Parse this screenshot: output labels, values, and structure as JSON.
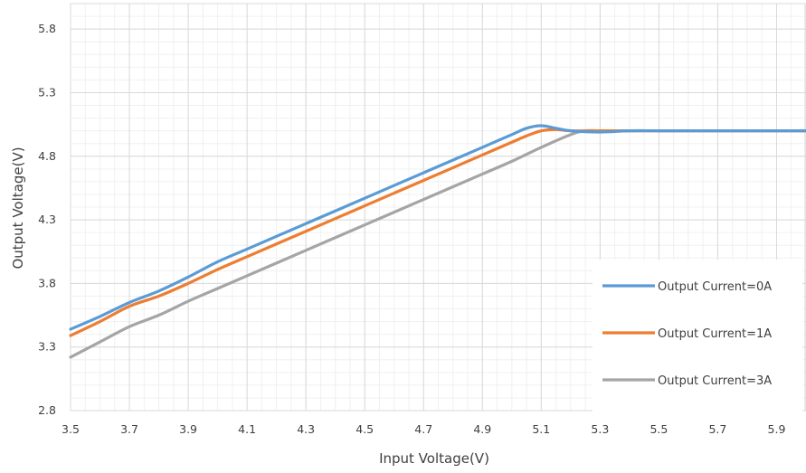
{
  "chart_data": {
    "type": "line",
    "title": "",
    "xlabel": "Input Voltage(V)",
    "ylabel": "Output Voltage(V)",
    "xlim": [
      3.5,
      6.0
    ],
    "ylim": [
      2.8,
      6.0
    ],
    "x_ticks": [
      "3.5",
      "3.7",
      "3.9",
      "4.1",
      "4.3",
      "4.5",
      "4.7",
      "4.9",
      "5.1",
      "5.3",
      "5.5",
      "5.7",
      "5.9"
    ],
    "y_ticks": [
      "2.8",
      "3.3",
      "3.8",
      "4.3",
      "4.8",
      "5.3",
      "5.8"
    ],
    "grid": true,
    "legend_position": "bottom-right",
    "series": [
      {
        "name": "Output Current=0A",
        "color": "#5b9bd5",
        "points": [
          [
            3.5,
            3.44
          ],
          [
            3.6,
            3.54
          ],
          [
            3.7,
            3.65
          ],
          [
            3.8,
            3.74
          ],
          [
            3.9,
            3.85
          ],
          [
            4.0,
            3.97
          ],
          [
            4.1,
            4.07
          ],
          [
            4.2,
            4.17
          ],
          [
            4.3,
            4.27
          ],
          [
            4.4,
            4.37
          ],
          [
            4.5,
            4.47
          ],
          [
            4.6,
            4.57
          ],
          [
            4.7,
            4.67
          ],
          [
            4.8,
            4.77
          ],
          [
            4.9,
            4.87
          ],
          [
            5.0,
            4.97
          ],
          [
            5.05,
            5.02
          ],
          [
            5.1,
            5.04
          ],
          [
            5.15,
            5.02
          ],
          [
            5.2,
            5.0
          ],
          [
            5.3,
            4.99
          ],
          [
            5.4,
            5.0
          ],
          [
            5.5,
            5.0
          ],
          [
            5.6,
            5.0
          ],
          [
            5.7,
            5.0
          ],
          [
            5.8,
            5.0
          ],
          [
            5.9,
            5.0
          ],
          [
            6.0,
            5.0
          ]
        ]
      },
      {
        "name": "Output Current=1A",
        "color": "#ed7d31",
        "points": [
          [
            3.5,
            3.39
          ],
          [
            3.6,
            3.5
          ],
          [
            3.7,
            3.62
          ],
          [
            3.8,
            3.7
          ],
          [
            3.9,
            3.8
          ],
          [
            4.0,
            3.91
          ],
          [
            4.1,
            4.01
          ],
          [
            4.2,
            4.11
          ],
          [
            4.3,
            4.21
          ],
          [
            4.4,
            4.31
          ],
          [
            4.5,
            4.41
          ],
          [
            4.6,
            4.51
          ],
          [
            4.7,
            4.61
          ],
          [
            4.8,
            4.71
          ],
          [
            4.9,
            4.81
          ],
          [
            5.0,
            4.91
          ],
          [
            5.05,
            4.96
          ],
          [
            5.1,
            5.0
          ],
          [
            5.15,
            5.01
          ],
          [
            5.2,
            5.0
          ],
          [
            5.3,
            5.0
          ],
          [
            5.4,
            5.0
          ],
          [
            5.5,
            5.0
          ],
          [
            5.6,
            5.0
          ],
          [
            5.7,
            5.0
          ],
          [
            5.8,
            5.0
          ],
          [
            5.9,
            5.0
          ],
          [
            6.0,
            5.0
          ]
        ]
      },
      {
        "name": "Output Current=3A",
        "color": "#a5a5a5",
        "points": [
          [
            3.5,
            3.22
          ],
          [
            3.6,
            3.34
          ],
          [
            3.7,
            3.46
          ],
          [
            3.8,
            3.55
          ],
          [
            3.9,
            3.66
          ],
          [
            4.0,
            3.76
          ],
          [
            4.1,
            3.86
          ],
          [
            4.2,
            3.96
          ],
          [
            4.3,
            4.06
          ],
          [
            4.4,
            4.16
          ],
          [
            4.5,
            4.26
          ],
          [
            4.6,
            4.36
          ],
          [
            4.7,
            4.46
          ],
          [
            4.8,
            4.56
          ],
          [
            4.9,
            4.66
          ],
          [
            5.0,
            4.76
          ],
          [
            5.1,
            4.87
          ],
          [
            5.2,
            4.97
          ],
          [
            5.25,
            5.0
          ],
          [
            5.3,
            5.0
          ],
          [
            5.4,
            5.0
          ],
          [
            5.5,
            5.0
          ],
          [
            5.6,
            5.0
          ],
          [
            5.7,
            5.0
          ],
          [
            5.8,
            5.0
          ],
          [
            5.9,
            5.0
          ],
          [
            6.0,
            5.0
          ]
        ]
      }
    ]
  }
}
